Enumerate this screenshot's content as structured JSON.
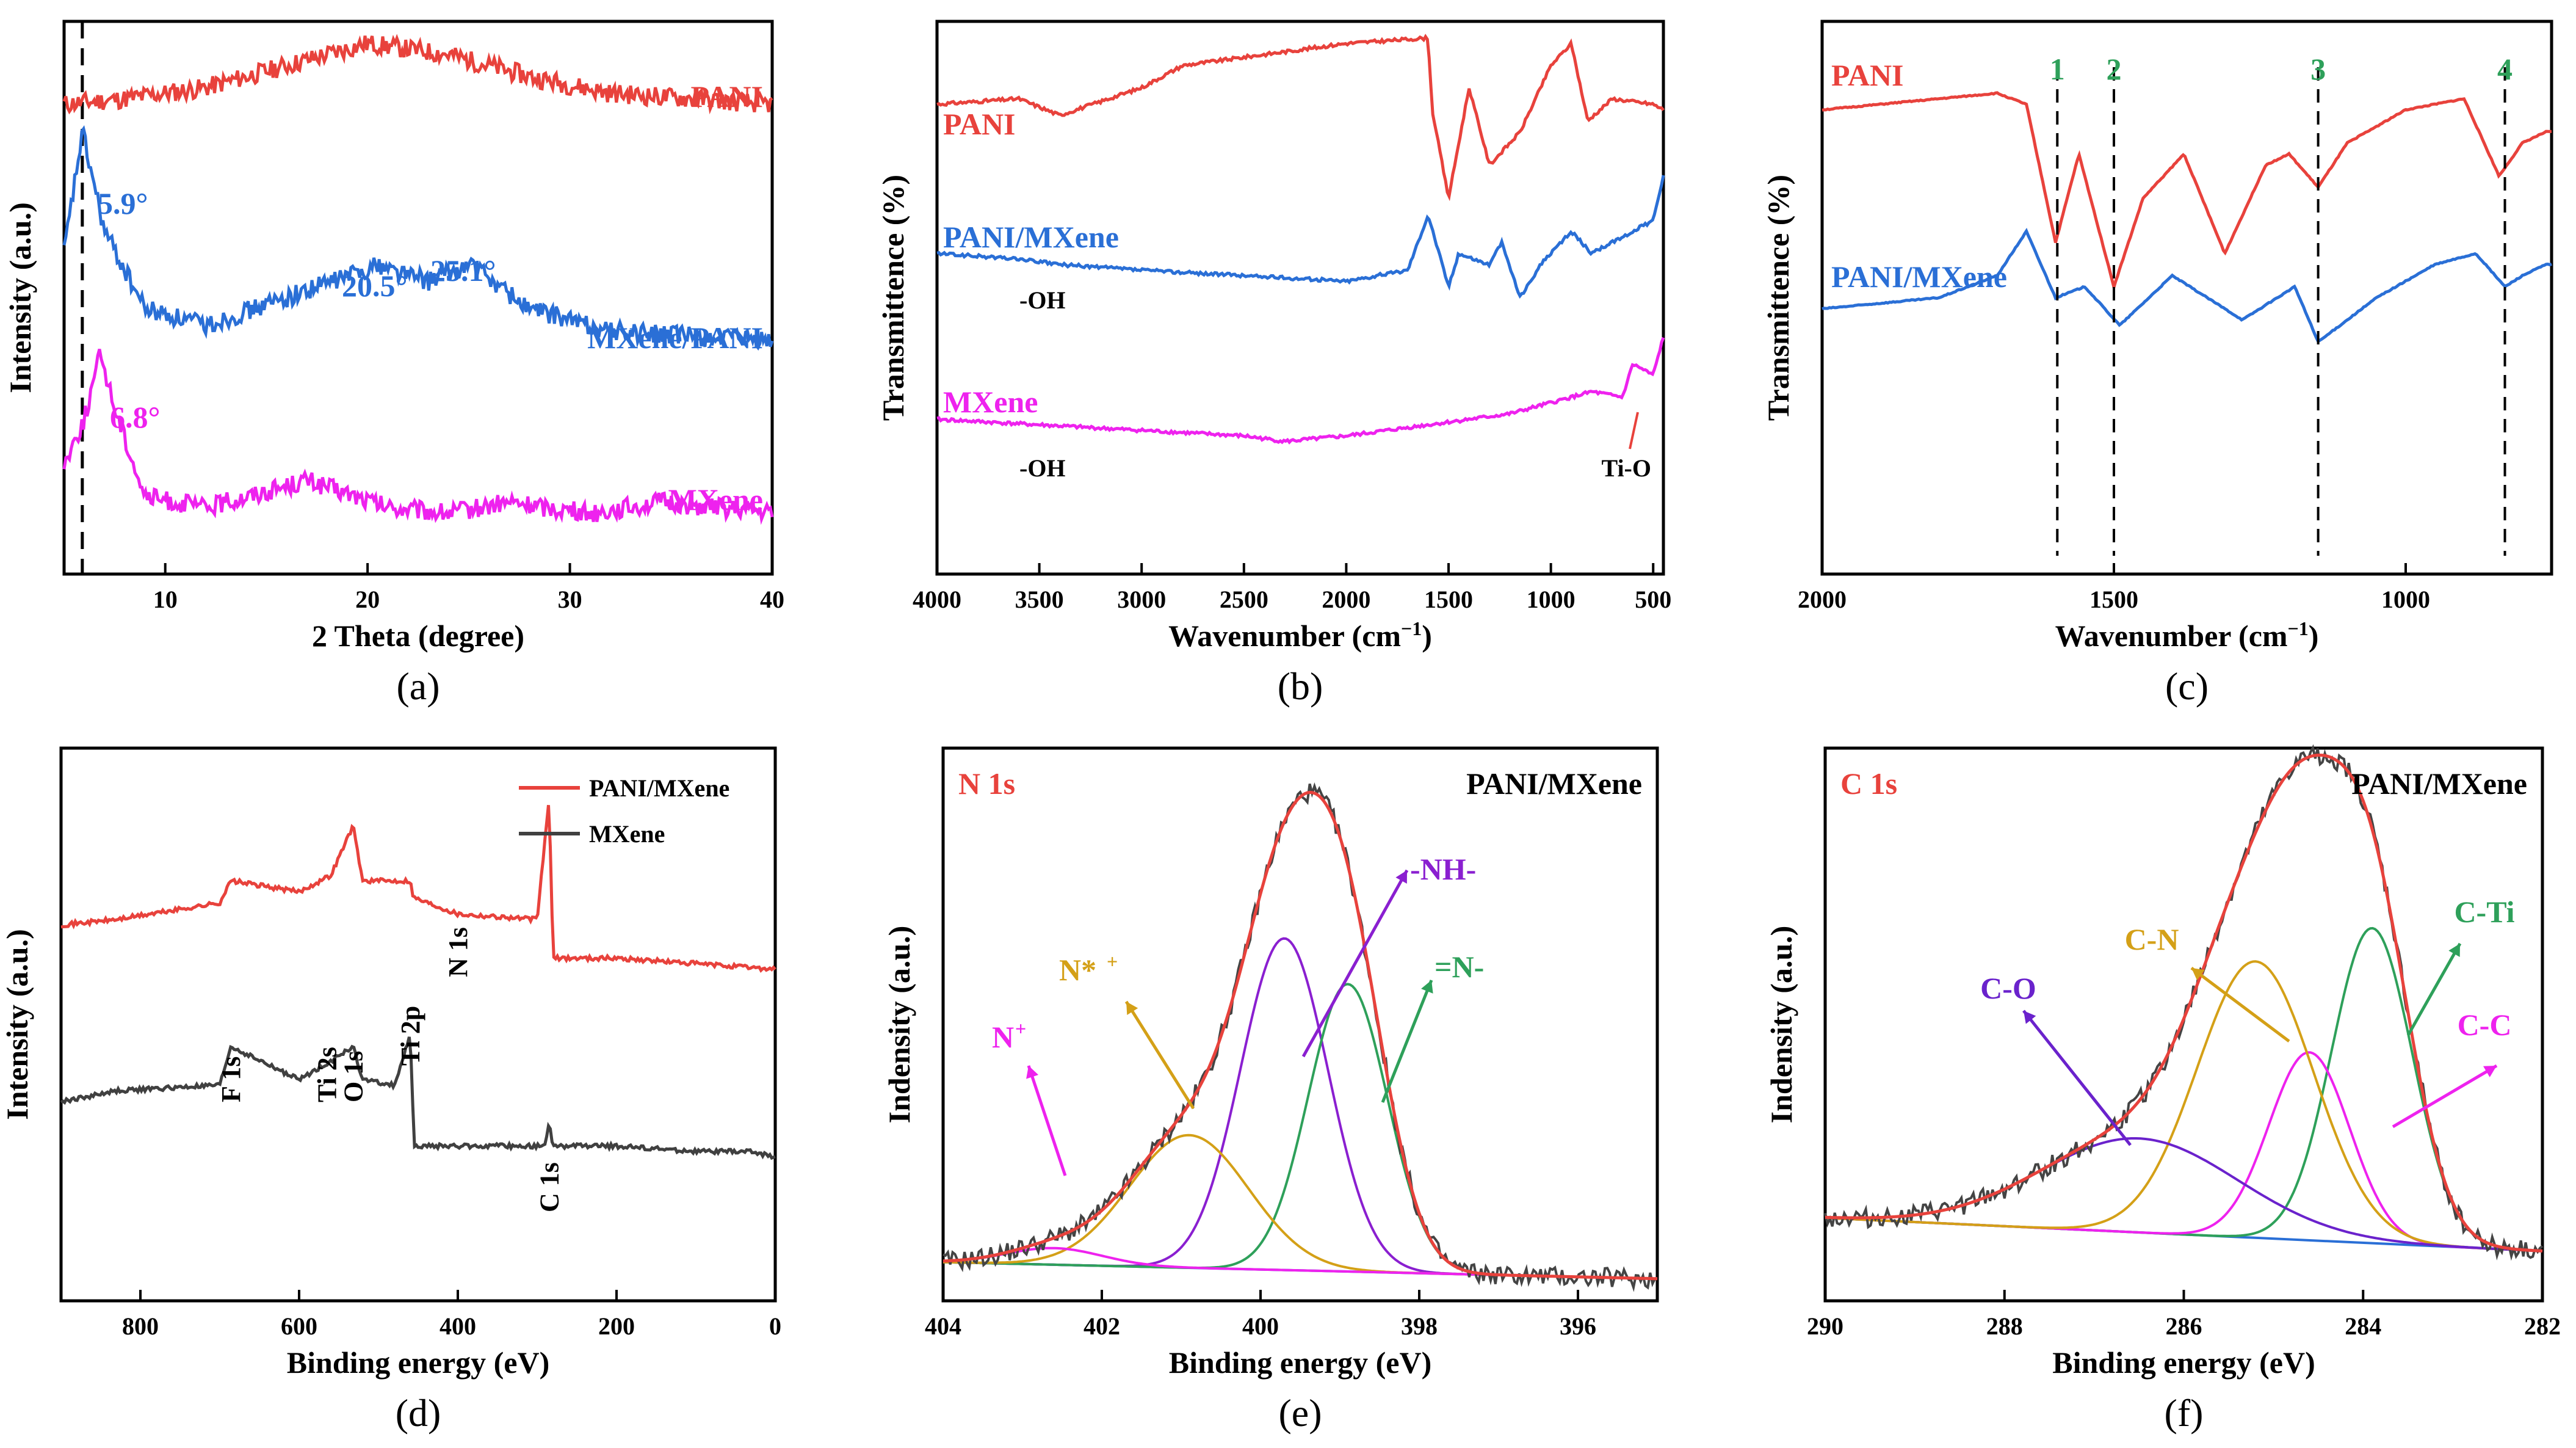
{
  "panel_labels": {
    "a": "(a)",
    "b": "(b)",
    "c": "(c)",
    "d": "(d)",
    "e": "(e)",
    "f": "(f)"
  },
  "chart_data": [
    {
      "id": "a",
      "type": "line",
      "xlabel": "2 Theta (degree)",
      "ylabel": "Intensity (a.u.)",
      "xlim": [
        5,
        40
      ],
      "xticks": [
        10,
        20,
        30,
        40
      ],
      "series": [
        {
          "name": "PANI",
          "color": "#e8423c",
          "x": [
            5,
            8,
            12,
            16,
            20,
            24,
            28,
            32,
            36,
            40
          ],
          "y": [
            0.85,
            0.86,
            0.88,
            0.92,
            0.96,
            0.94,
            0.9,
            0.87,
            0.86,
            0.85
          ]
        },
        {
          "name": "MXene/PANI",
          "color": "#2a6fd6",
          "x": [
            5,
            5.9,
            7,
            9,
            12,
            16,
            20.5,
            23,
            25.1,
            28,
            32,
            36,
            40
          ],
          "y": [
            0.58,
            0.8,
            0.62,
            0.48,
            0.45,
            0.5,
            0.56,
            0.53,
            0.56,
            0.48,
            0.44,
            0.43,
            0.42
          ]
        },
        {
          "name": "MXene",
          "color": "#ee22ee",
          "x": [
            5,
            6,
            6.8,
            7.5,
            9,
            12,
            17,
            21,
            24,
            27,
            31,
            34.5,
            40
          ],
          "y": [
            0.2,
            0.28,
            0.4,
            0.3,
            0.14,
            0.12,
            0.17,
            0.12,
            0.11,
            0.13,
            0.11,
            0.13,
            0.11
          ]
        }
      ],
      "annotations": [
        "5.9°",
        "20.5°",
        "25.1°",
        "6.8°"
      ],
      "dashed_line_x": 5.9
    },
    {
      "id": "b",
      "type": "line",
      "xlabel": "Wavenumber (cm",
      "xlabel_sup": "−1",
      "xlabel_end": ")",
      "ylabel": "Transmittence (%)",
      "xlim": [
        4000,
        450
      ],
      "xticks": [
        4000,
        3500,
        3000,
        2500,
        2000,
        1500,
        1000,
        500
      ],
      "series": [
        {
          "name": "PANI",
          "color": "#e8423c",
          "x": [
            4000,
            3600,
            3400,
            3000,
            2800,
            2400,
            2000,
            1600,
            1580,
            1500,
            1400,
            1300,
            1150,
            1000,
            900,
            820,
            700,
            500,
            450
          ],
          "y": [
            0.85,
            0.86,
            0.83,
            0.88,
            0.92,
            0.94,
            0.96,
            0.97,
            0.84,
            0.68,
            0.88,
            0.74,
            0.8,
            0.92,
            0.96,
            0.82,
            0.86,
            0.85,
            0.84
          ]
        },
        {
          "name": "PANI/MXene",
          "color": "#2a6fd6",
          "x": [
            4000,
            3600,
            3400,
            3000,
            2500,
            2000,
            1700,
            1600,
            1500,
            1450,
            1300,
            1240,
            1150,
            1050,
            900,
            800,
            700,
            500,
            450
          ],
          "y": [
            0.58,
            0.57,
            0.56,
            0.55,
            0.54,
            0.53,
            0.55,
            0.65,
            0.52,
            0.58,
            0.56,
            0.6,
            0.5,
            0.56,
            0.62,
            0.58,
            0.6,
            0.64,
            0.72
          ]
        },
        {
          "name": "MXene",
          "color": "#ee22ee",
          "x": [
            4000,
            3500,
            3000,
            2500,
            2300,
            2000,
            1600,
            1200,
            1000,
            800,
            650,
            600,
            500,
            450
          ],
          "y": [
            0.28,
            0.27,
            0.26,
            0.25,
            0.24,
            0.25,
            0.27,
            0.29,
            0.31,
            0.33,
            0.32,
            0.38,
            0.36,
            0.43
          ]
        }
      ],
      "annotations": [
        "-OH",
        "-OH",
        "Ti-O"
      ]
    },
    {
      "id": "c",
      "type": "line",
      "xlabel": "Wavenumber (cm",
      "xlabel_sup": "−1",
      "xlabel_end": ")",
      "ylabel": "Transmittence (%)",
      "xlim": [
        2000,
        750
      ],
      "xticks": [
        2000,
        1500,
        1000
      ],
      "series": [
        {
          "name": "PANI",
          "color": "#e8423c",
          "x": [
            2000,
            1800,
            1700,
            1650,
            1600,
            1560,
            1500,
            1450,
            1380,
            1310,
            1240,
            1200,
            1150,
            1100,
            1000,
            900,
            840,
            800,
            760
          ],
          "y": [
            0.84,
            0.86,
            0.87,
            0.85,
            0.6,
            0.76,
            0.52,
            0.68,
            0.76,
            0.58,
            0.74,
            0.76,
            0.7,
            0.78,
            0.84,
            0.86,
            0.72,
            0.78,
            0.8
          ]
        },
        {
          "name": "PANI/MXene",
          "color": "#2a6fd6",
          "x": [
            2000,
            1800,
            1700,
            1650,
            1600,
            1550,
            1490,
            1400,
            1280,
            1190,
            1150,
            1050,
            950,
            880,
            830,
            800,
            760
          ],
          "y": [
            0.48,
            0.5,
            0.54,
            0.62,
            0.5,
            0.52,
            0.45,
            0.54,
            0.46,
            0.52,
            0.42,
            0.5,
            0.56,
            0.58,
            0.52,
            0.54,
            0.56
          ]
        }
      ],
      "markers": [
        {
          "label": "1",
          "x": 1597
        },
        {
          "label": "2",
          "x": 1500
        },
        {
          "label": "3",
          "x": 1150
        },
        {
          "label": "4",
          "x": 830
        }
      ]
    },
    {
      "id": "d",
      "type": "line",
      "xlabel": "Binding energy (eV)",
      "ylabel": "Intensity (a.u.)",
      "xlim": [
        900,
        0
      ],
      "xticks": [
        800,
        600,
        400,
        200,
        0
      ],
      "legend": [
        "PANI/MXene",
        "MXene"
      ],
      "series": [
        {
          "name": "PANI/MXene",
          "color": "#e8423c",
          "x": [
            900,
            830,
            700,
            686,
            600,
            560,
            532,
            520,
            460,
            456,
            400,
            300,
            285,
            280,
            200,
            100,
            0
          ],
          "y": [
            0.68,
            0.69,
            0.72,
            0.76,
            0.74,
            0.77,
            0.86,
            0.76,
            0.76,
            0.73,
            0.7,
            0.69,
            0.91,
            0.62,
            0.62,
            0.61,
            0.6
          ]
        },
        {
          "name": "MXene",
          "color": "#404040",
          "x": [
            900,
            830,
            700,
            686,
            600,
            565,
            532,
            520,
            480,
            460,
            455,
            400,
            290,
            285,
            280,
            200,
            100,
            30,
            0
          ],
          "y": [
            0.36,
            0.38,
            0.39,
            0.46,
            0.4,
            0.43,
            0.46,
            0.4,
            0.39,
            0.48,
            0.28,
            0.28,
            0.28,
            0.32,
            0.28,
            0.28,
            0.27,
            0.27,
            0.26
          ]
        }
      ],
      "annotations": [
        "N 1s",
        "F 1s",
        "Ti 2s",
        "O 1s",
        "Ti 2p",
        "C 1s"
      ]
    },
    {
      "id": "e",
      "type": "line",
      "title": "N 1s",
      "sample": "PANI/MXene",
      "xlabel": "Binding energy (eV)",
      "ylabel": "Indensity (a.u.)",
      "xlim": [
        404,
        395
      ],
      "xticks": [
        404,
        402,
        400,
        398,
        396
      ],
      "peaks": [
        {
          "name": "-NH-",
          "color": "#8a1fd0",
          "center": 399.7,
          "amplitude": 0.6,
          "width": 0.55
        },
        {
          "name": "=N-",
          "color": "#2ea05a",
          "center": 398.9,
          "amplitude": 0.52,
          "width": 0.5
        },
        {
          "name": "N*+",
          "color": "#d4a017",
          "center": 400.9,
          "amplitude": 0.24,
          "width": 0.75
        },
        {
          "name": "N+",
          "color": "#ee22ee",
          "center": 402.6,
          "amplitude": 0.03,
          "width": 0.6
        }
      ],
      "labels": [
        "-NH-",
        "=N-",
        "N*",
        "+",
        "N",
        "+"
      ]
    },
    {
      "id": "f",
      "type": "line",
      "title": "C 1s",
      "sample": "PANI/MXene",
      "xlabel": "Binding energy (eV)",
      "ylabel": "Indensity (a.u.)",
      "xlim": [
        290,
        282
      ],
      "xticks": [
        290,
        288,
        286,
        284,
        282
      ],
      "peaks": [
        {
          "name": "C-Ti",
          "color": "#2ea05a",
          "center": 283.9,
          "amplitude": 0.57,
          "width": 0.45
        },
        {
          "name": "C-C",
          "color": "#ee22ee",
          "center": 284.6,
          "amplitude": 0.34,
          "width": 0.45
        },
        {
          "name": "C-N",
          "color": "#d4a017",
          "center": 285.2,
          "amplitude": 0.5,
          "width": 0.65
        },
        {
          "name": "C-O",
          "color": "#6a22cc",
          "center": 286.5,
          "amplitude": 0.17,
          "width": 1.1
        }
      ],
      "labels": [
        "C-Ti",
        "C-C",
        "C-N",
        "C-O"
      ]
    }
  ]
}
